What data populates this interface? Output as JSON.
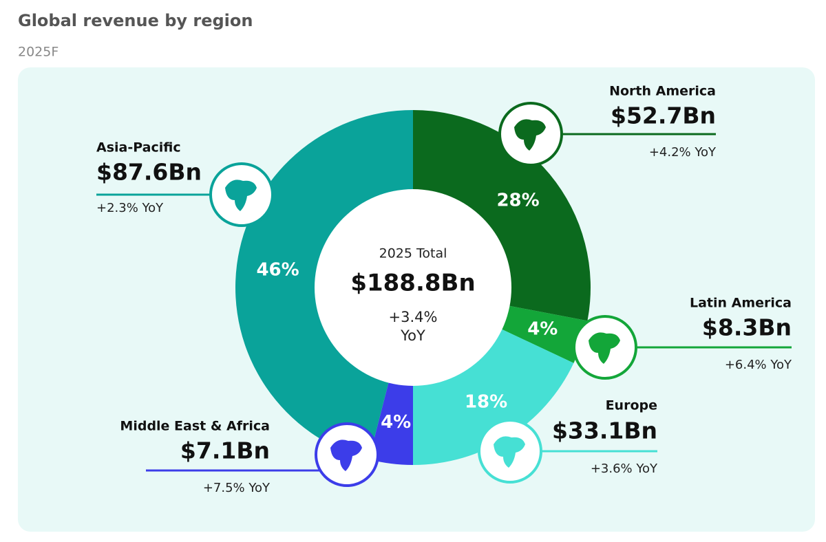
{
  "chart_data": {
    "type": "donut",
    "title": "Global revenue by region",
    "subtitle": "2025F",
    "categories": [
      "North America",
      "Latin America",
      "Europe",
      "Middle East & Africa",
      "Asia-Pacific"
    ],
    "values": [
      28,
      4,
      18,
      4,
      46
    ],
    "value_labels": [
      "28%",
      "4%",
      "18%",
      "4%",
      "46%"
    ],
    "colors": [
      "#0b6a1e",
      "#13a639",
      "#46e0d4",
      "#3c3de9",
      "#0aa39a"
    ],
    "amount_labels": [
      "$52.7Bn",
      "$8.3Bn",
      "$33.1Bn",
      "$7.1Bn",
      "$87.6Bn"
    ],
    "change_labels": [
      "+4.2% YoY",
      "+6.4% YoY",
      "+3.6% YoY",
      "+7.5% YoY",
      "+2.3% YoY"
    ],
    "center_label": "2025 Total",
    "center_value": "$188.8Bn",
    "center_change": [
      "+3.4%",
      "YoY"
    ]
  }
}
